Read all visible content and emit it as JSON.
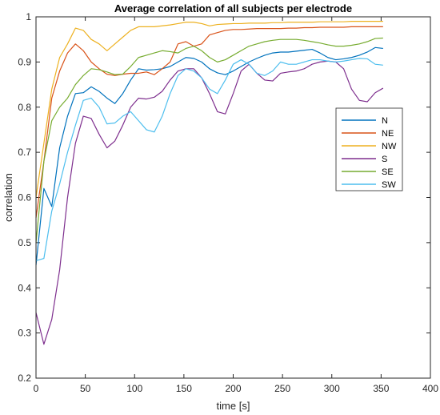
{
  "chart_data": {
    "type": "line",
    "title": "Average correlation of all subjects per electrode",
    "xlabel": "time [s]",
    "ylabel": "correlation",
    "xlim": [
      0,
      400
    ],
    "ylim": [
      0.2,
      1.0
    ],
    "xticks": [
      0,
      50,
      100,
      150,
      200,
      250,
      300,
      350,
      400
    ],
    "yticks": [
      0.2,
      0.3,
      0.4,
      0.5,
      0.6,
      0.7,
      0.8,
      0.9,
      1.0
    ],
    "xtick_labels": [
      "0",
      "50",
      "100",
      "150",
      "200",
      "250",
      "300",
      "350",
      "400"
    ],
    "ytick_labels": [
      "0.2",
      "0.3",
      "0.4",
      "0.5",
      "0.6",
      "0.7",
      "0.8",
      "0.9",
      "1"
    ],
    "grid": false,
    "legend_position": "right",
    "x": [
      0,
      8,
      16,
      24,
      32,
      40,
      48,
      56,
      64,
      72,
      80,
      88,
      96,
      104,
      112,
      120,
      128,
      136,
      144,
      152,
      160,
      168,
      176,
      184,
      192,
      200,
      208,
      216,
      224,
      232,
      240,
      248,
      256,
      264,
      272,
      280,
      288,
      296,
      304,
      312,
      320,
      328,
      336,
      344,
      352
    ],
    "series": [
      {
        "name": "N",
        "color": "#0072BD",
        "values": [
          0.45,
          0.62,
          0.58,
          0.71,
          0.78,
          0.83,
          0.832,
          0.845,
          0.835,
          0.82,
          0.808,
          0.83,
          0.86,
          0.885,
          0.882,
          0.883,
          0.885,
          0.89,
          0.9,
          0.91,
          0.908,
          0.9,
          0.885,
          0.876,
          0.872,
          0.88,
          0.89,
          0.9,
          0.908,
          0.915,
          0.92,
          0.922,
          0.922,
          0.924,
          0.926,
          0.928,
          0.92,
          0.91,
          0.905,
          0.907,
          0.91,
          0.915,
          0.922,
          0.932,
          0.93
        ]
      },
      {
        "name": "NE",
        "color": "#D95319",
        "values": [
          0.555,
          0.68,
          0.82,
          0.88,
          0.92,
          0.94,
          0.925,
          0.9,
          0.885,
          0.873,
          0.87,
          0.873,
          0.875,
          0.875,
          0.878,
          0.872,
          0.885,
          0.9,
          0.94,
          0.945,
          0.935,
          0.94,
          0.96,
          0.965,
          0.97,
          0.972,
          0.972,
          0.973,
          0.974,
          0.974,
          0.974,
          0.974,
          0.975,
          0.975,
          0.976,
          0.976,
          0.977,
          0.977,
          0.977,
          0.977,
          0.978,
          0.978,
          0.978,
          0.978,
          0.978
        ]
      },
      {
        "name": "NW",
        "color": "#EDB120",
        "values": [
          0.6,
          0.72,
          0.84,
          0.91,
          0.94,
          0.975,
          0.97,
          0.95,
          0.94,
          0.925,
          0.94,
          0.955,
          0.97,
          0.978,
          0.978,
          0.978,
          0.98,
          0.982,
          0.985,
          0.988,
          0.988,
          0.985,
          0.98,
          0.983,
          0.984,
          0.985,
          0.985,
          0.986,
          0.986,
          0.986,
          0.987,
          0.987,
          0.988,
          0.988,
          0.988,
          0.988,
          0.989,
          0.989,
          0.989,
          0.989,
          0.99,
          0.99,
          0.99,
          0.99,
          0.99
        ]
      },
      {
        "name": "S",
        "color": "#7E2F8E",
        "values": [
          0.345,
          0.275,
          0.33,
          0.44,
          0.6,
          0.72,
          0.78,
          0.775,
          0.74,
          0.71,
          0.725,
          0.76,
          0.8,
          0.82,
          0.818,
          0.822,
          0.835,
          0.86,
          0.88,
          0.885,
          0.885,
          0.865,
          0.83,
          0.79,
          0.785,
          0.83,
          0.88,
          0.895,
          0.875,
          0.86,
          0.858,
          0.875,
          0.878,
          0.88,
          0.885,
          0.895,
          0.9,
          0.902,
          0.9,
          0.885,
          0.84,
          0.815,
          0.812,
          0.832,
          0.842
        ]
      },
      {
        "name": "SE",
        "color": "#77AC30",
        "values": [
          0.5,
          0.68,
          0.77,
          0.8,
          0.82,
          0.85,
          0.87,
          0.885,
          0.883,
          0.878,
          0.872,
          0.873,
          0.89,
          0.91,
          0.915,
          0.92,
          0.925,
          0.923,
          0.92,
          0.93,
          0.935,
          0.925,
          0.91,
          0.9,
          0.905,
          0.915,
          0.925,
          0.935,
          0.94,
          0.945,
          0.948,
          0.95,
          0.95,
          0.95,
          0.948,
          0.945,
          0.942,
          0.938,
          0.935,
          0.935,
          0.937,
          0.94,
          0.945,
          0.952,
          0.953
        ]
      },
      {
        "name": "SW",
        "color": "#4DBEEE",
        "values": [
          0.46,
          0.465,
          0.57,
          0.63,
          0.7,
          0.76,
          0.815,
          0.82,
          0.8,
          0.763,
          0.765,
          0.78,
          0.79,
          0.77,
          0.75,
          0.745,
          0.78,
          0.83,
          0.87,
          0.885,
          0.88,
          0.865,
          0.84,
          0.83,
          0.86,
          0.895,
          0.905,
          0.895,
          0.875,
          0.87,
          0.88,
          0.9,
          0.895,
          0.895,
          0.9,
          0.905,
          0.905,
          0.902,
          0.9,
          0.902,
          0.905,
          0.908,
          0.907,
          0.895,
          0.893
        ]
      }
    ]
  }
}
